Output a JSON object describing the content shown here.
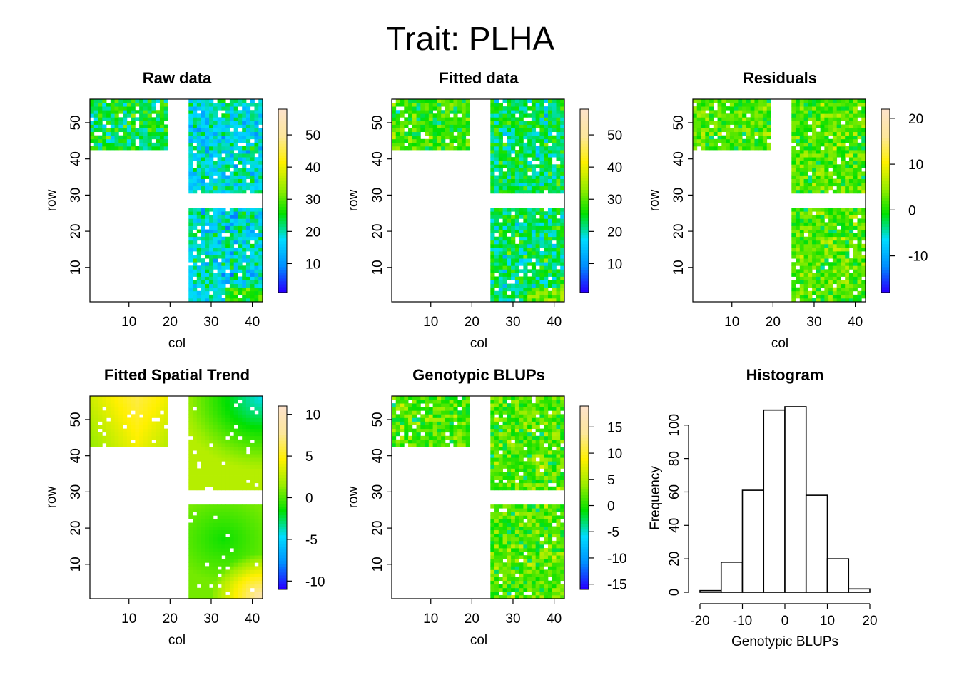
{
  "title": "Trait: PLHA",
  "colors": {
    "scale": [
      "#2600ff",
      "#0090ff",
      "#00dcff",
      "#00e000",
      "#9aed00",
      "#fff000",
      "#fde79a",
      "#fde2c8"
    ],
    "missing": "#ffffff"
  },
  "chart_data": [
    {
      "type": "heatmap",
      "title": "Raw data",
      "xlabel": "col",
      "ylabel": "row",
      "xlim": [
        1,
        42
      ],
      "ylim": [
        1,
        56
      ],
      "xticks": [
        10,
        20,
        30,
        40
      ],
      "yticks": [
        10,
        20,
        30,
        40,
        50
      ],
      "blocks": [
        {
          "cols": [
            1,
            19
          ],
          "rows": [
            43,
            56
          ]
        },
        {
          "cols": [
            25,
            42
          ],
          "rows": [
            31,
            56
          ]
        },
        {
          "cols": [
            25,
            42
          ],
          "rows": [
            1,
            26
          ]
        }
      ],
      "colorbar": {
        "range": [
          1,
          58
        ],
        "ticks": [
          10,
          20,
          30,
          40,
          50
        ]
      }
    },
    {
      "type": "heatmap",
      "title": "Fitted data",
      "xlabel": "col",
      "ylabel": "row",
      "xlim": [
        1,
        42
      ],
      "ylim": [
        1,
        56
      ],
      "xticks": [
        10,
        20,
        30,
        40
      ],
      "yticks": [
        10,
        20,
        30,
        40,
        50
      ],
      "blocks": [
        {
          "cols": [
            1,
            19
          ],
          "rows": [
            43,
            56
          ]
        },
        {
          "cols": [
            25,
            42
          ],
          "rows": [
            31,
            56
          ]
        },
        {
          "cols": [
            25,
            42
          ],
          "rows": [
            1,
            26
          ]
        }
      ],
      "colorbar": {
        "range": [
          1,
          58
        ],
        "ticks": [
          10,
          20,
          30,
          40,
          50
        ]
      }
    },
    {
      "type": "heatmap",
      "title": "Residuals",
      "xlabel": "col",
      "ylabel": "row",
      "xlim": [
        1,
        42
      ],
      "ylim": [
        1,
        56
      ],
      "xticks": [
        10,
        20,
        30,
        40
      ],
      "yticks": [
        10,
        20,
        30,
        40,
        50
      ],
      "blocks": [
        {
          "cols": [
            1,
            19
          ],
          "rows": [
            43,
            56
          ]
        },
        {
          "cols": [
            25,
            42
          ],
          "rows": [
            31,
            56
          ]
        },
        {
          "cols": [
            25,
            42
          ],
          "rows": [
            1,
            26
          ]
        }
      ],
      "colorbar": {
        "range": [
          -18,
          22
        ],
        "ticks": [
          -10,
          0,
          10,
          20
        ]
      }
    },
    {
      "type": "heatmap",
      "title": "Fitted Spatial Trend",
      "xlabel": "col",
      "ylabel": "row",
      "xlim": [
        1,
        42
      ],
      "ylim": [
        1,
        56
      ],
      "xticks": [
        10,
        20,
        30,
        40
      ],
      "yticks": [
        10,
        20,
        30,
        40,
        50
      ],
      "blocks": [
        {
          "cols": [
            1,
            19
          ],
          "rows": [
            43,
            56
          ]
        },
        {
          "cols": [
            25,
            42
          ],
          "rows": [
            31,
            56
          ]
        },
        {
          "cols": [
            25,
            42
          ],
          "rows": [
            1,
            26
          ]
        }
      ],
      "colorbar": {
        "range": [
          -11,
          11
        ],
        "ticks": [
          -10,
          -5,
          0,
          5,
          10
        ]
      }
    },
    {
      "type": "heatmap",
      "title": "Genotypic BLUPs",
      "xlabel": "col",
      "ylabel": "row",
      "xlim": [
        1,
        42
      ],
      "ylim": [
        1,
        56
      ],
      "xticks": [
        10,
        20,
        30,
        40
      ],
      "yticks": [
        10,
        20,
        30,
        40,
        50
      ],
      "blocks": [
        {
          "cols": [
            1,
            19
          ],
          "rows": [
            43,
            56
          ]
        },
        {
          "cols": [
            25,
            42
          ],
          "rows": [
            31,
            56
          ]
        },
        {
          "cols": [
            25,
            42
          ],
          "rows": [
            1,
            26
          ]
        }
      ],
      "colorbar": {
        "range": [
          -16,
          19
        ],
        "ticks": [
          -15,
          -10,
          -5,
          0,
          5,
          10,
          15
        ]
      }
    },
    {
      "type": "bar",
      "title": "Histogram",
      "xlabel": "Genotypic BLUPs",
      "ylabel": "Frequency",
      "bins": [
        [
          -20,
          -15
        ],
        [
          -15,
          -10
        ],
        [
          -10,
          -5
        ],
        [
          -5,
          0
        ],
        [
          0,
          5
        ],
        [
          5,
          10
        ],
        [
          10,
          15
        ],
        [
          15,
          20
        ]
      ],
      "values": [
        1,
        18,
        61,
        109,
        111,
        58,
        20,
        2
      ],
      "xlim": [
        -20,
        20
      ],
      "ylim": [
        0,
        111
      ],
      "xticks": [
        -20,
        -10,
        0,
        10,
        20
      ],
      "yticks": [
        0,
        20,
        40,
        60,
        80,
        100
      ]
    }
  ]
}
